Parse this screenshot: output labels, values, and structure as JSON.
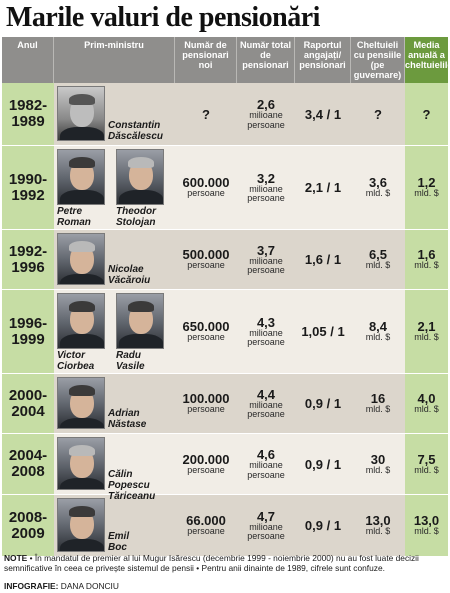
{
  "title": "Marile valuri de pensionări",
  "headers": {
    "anul": "Anul",
    "prim_ministru": "Prim-ministru",
    "pensionari_noi": "Număr de pensionari noi",
    "total_pensionari": "Număr total de pensionari",
    "raport": "Raportul angajați/ pensionari",
    "cheltuieli": "Cheltuieli cu pensiile (pe guvernare)",
    "medie": "Media anuală a cheltuielilor"
  },
  "rows": [
    {
      "years": [
        "1982-",
        "1989"
      ],
      "ministers": [
        {
          "first": "Constantin",
          "last": "Dăscălescu"
        }
      ],
      "new_pensioners": "?",
      "new_unit": "",
      "total": "2,6",
      "total_unit": [
        "milioane",
        "persoane"
      ],
      "ratio": "3,4 / 1",
      "spending": "?",
      "spending_unit": "",
      "avg": "?",
      "avg_unit": ""
    },
    {
      "years": [
        "1990-",
        "1992"
      ],
      "ministers": [
        {
          "first": "Petre",
          "last": "Roman"
        },
        {
          "first": "Theodor",
          "last": "Stolojan"
        }
      ],
      "new_pensioners": "600.000",
      "new_unit": "persoane",
      "total": "3,2",
      "total_unit": [
        "milioane",
        "persoane"
      ],
      "ratio": "2,1 / 1",
      "spending": "3,6",
      "spending_unit": "mld. $",
      "avg": "1,2",
      "avg_unit": "mld. $"
    },
    {
      "years": [
        "1992-",
        "1996"
      ],
      "ministers": [
        {
          "first": "Nicolae",
          "last": "Văcăroiu"
        }
      ],
      "new_pensioners": "500.000",
      "new_unit": "persoane",
      "total": "3,7",
      "total_unit": [
        "milioane",
        "persoane"
      ],
      "ratio": "1,6 / 1",
      "spending": "6,5",
      "spending_unit": "mld. $",
      "avg": "1,6",
      "avg_unit": "mld. $"
    },
    {
      "years": [
        "1996-",
        "1999"
      ],
      "ministers": [
        {
          "first": "Victor",
          "last": "Ciorbea"
        },
        {
          "first": "Radu",
          "last": "Vasile"
        }
      ],
      "new_pensioners": "650.000",
      "new_unit": "persoane",
      "total": "4,3",
      "total_unit": [
        "milioane",
        "persoane"
      ],
      "ratio": "1,05 / 1",
      "spending": "8,4",
      "spending_unit": "mld. $",
      "avg": "2,1",
      "avg_unit": "mld. $"
    },
    {
      "years": [
        "2000-",
        "2004"
      ],
      "ministers": [
        {
          "first": "Adrian",
          "last": "Năstase"
        }
      ],
      "new_pensioners": "100.000",
      "new_unit": "persoane",
      "total": "4,4",
      "total_unit": [
        "milioane",
        "persoane"
      ],
      "ratio": "0,9 / 1",
      "spending": "16",
      "spending_unit": "mld. $",
      "avg": "4,0",
      "avg_unit": "mld. $"
    },
    {
      "years": [
        "2004-",
        "2008"
      ],
      "ministers": [
        {
          "first": "Călin Popescu",
          "last": "Tăriceanu"
        }
      ],
      "new_pensioners": "200.000",
      "new_unit": "persoane",
      "total": "4,6",
      "total_unit": [
        "milioane",
        "persoane"
      ],
      "ratio": "0,9 / 1",
      "spending": "30",
      "spending_unit": "mld. $",
      "avg": "7,5",
      "avg_unit": "mld. $"
    },
    {
      "years": [
        "2008-",
        "2009"
      ],
      "ministers": [
        {
          "first": "Emil",
          "last": "Boc"
        }
      ],
      "new_pensioners": "66.000",
      "new_unit": "persoane",
      "total": "4,7",
      "total_unit": [
        "milioane",
        "persoane"
      ],
      "ratio": "0,9 / 1",
      "spending": "13,0",
      "spending_unit": "mld. $",
      "avg": "13,0",
      "avg_unit": "mld. $"
    }
  ],
  "note": {
    "label": "NOTE",
    "text": " • În mandatul de premier al lui Mugur Isărescu (decembrie 1999 - noiembrie 2000) nu au fost luate decizii semnificative în ceea ce privește sistemul de pensii • Pentru anii dinainte de 1989, cifrele sunt confuze."
  },
  "credit": {
    "label": "INFOGRAFIE:",
    "author": " DANA DONCIU"
  }
}
